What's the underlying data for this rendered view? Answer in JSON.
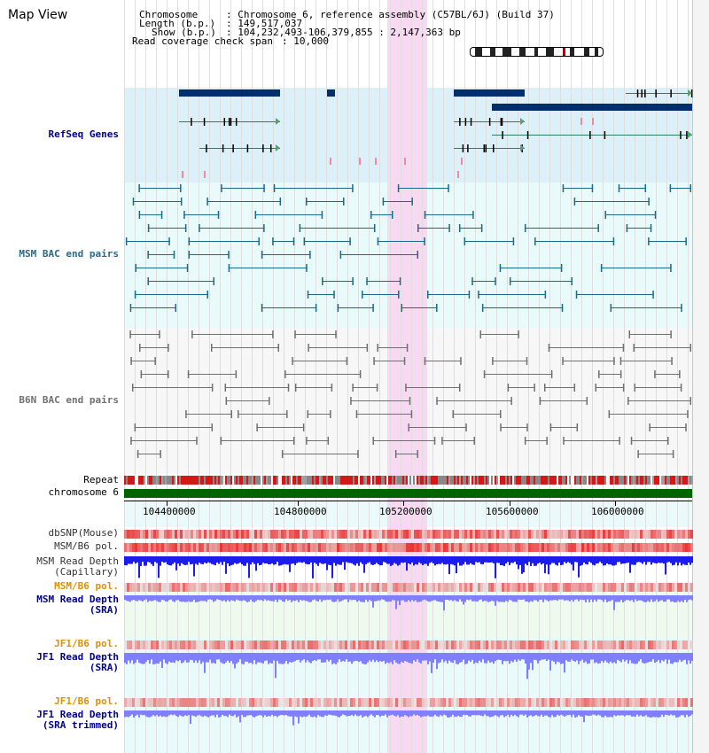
{
  "title": "Map View",
  "info": {
    "chromosome_label": "Chromosome",
    "chromosome_value": "Chromosome 6, reference assembly (C57BL/6J) (Build 37)",
    "length_label": "Length (b.p.)",
    "length_value": "149,517,037",
    "show_label": "Show (b.p.)",
    "show_value": "104,232,493-106,379,855 : 2,147,363 bp",
    "coverage_label": "Read coverage check span",
    "coverage_value": "10,000"
  },
  "tracks": {
    "refseq": "RefSeq Genes",
    "msm_bac": "MSM BAC end pairs",
    "b6n_bac": "B6N BAC end pairs",
    "repeat": "Repeat",
    "chromosome": "chromosome 6",
    "dbsnp": "dbSNP(Mouse)",
    "msm_b6_pol_1": "MSM/B6 pol.",
    "msm_depth_cap_1": "MSM Read Depth",
    "msm_depth_cap_2": "(Capillary)",
    "msm_b6_pol_2": "MSM/B6 pol.",
    "msm_depth_sra_1": "MSM Read Depth",
    "msm_depth_sra_2": "(SRA)",
    "jf1_b6_pol_1": "JF1/B6 pol.",
    "jf1_depth_sra_1": "JF1 Read Depth",
    "jf1_depth_sra_2": "(SRA)",
    "jf1_b6_pol_2": "JF1/B6 pol.",
    "jf1_depth_trim_1": "JF1 Read Depth",
    "jf1_depth_trim_2": "(SRA trimmed)"
  },
  "axis_ticks": [
    "104400000",
    "104800000",
    "105200000",
    "105600000",
    "106000000"
  ],
  "colors": {
    "highlight": "#f9d9f2",
    "refseq_bg": "#dcf0fa",
    "bac_bg": "#e8fafa",
    "gene_fill": "#002f6c",
    "msm_pair": "#1a6b8a",
    "b6n_pair": "#707070",
    "chromosome_bar": "#006400",
    "snp": "#e83030",
    "depth_blue": "#1c1cee",
    "depth_light": "#8080ff",
    "label_blue": "#00008b",
    "label_teal": "#2a6a8a",
    "label_orange": "#e09000"
  }
}
